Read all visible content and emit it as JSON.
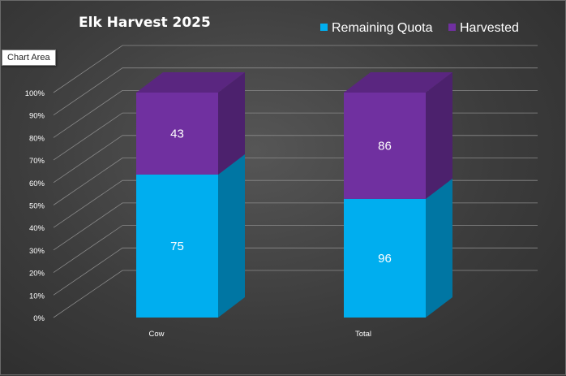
{
  "tooltip": "Chart Area",
  "chart_data": {
    "type": "bar",
    "stacked": "percent",
    "title": "Elk Harvest 2025",
    "categories": [
      "Cow",
      "Total"
    ],
    "series": [
      {
        "name": "Remaining Quota",
        "values": [
          75,
          96
        ],
        "color": "#00aeef"
      },
      {
        "name": "Harvested",
        "values": [
          43,
          86
        ],
        "color": "#7030a0"
      }
    ],
    "y_ticks": [
      "0%",
      "10%",
      "20%",
      "30%",
      "40%",
      "50%",
      "60%",
      "70%",
      "80%",
      "90%",
      "100%"
    ],
    "ylim": [
      0,
      100
    ],
    "grid": true,
    "legend_position": "top-right"
  }
}
